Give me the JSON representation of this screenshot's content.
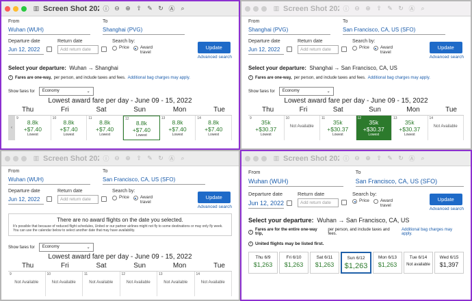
{
  "w1": {
    "title": "Screen Shot 2022-0...",
    "from_label": "From",
    "from": "Wuhan (WUH)",
    "to_label": "To",
    "to": "Shanghai (PVG)",
    "dep_label": "Departure date",
    "dep": "Jun 12, 2022",
    "ret_label": "Return date",
    "ret_ph": "Add return date",
    "search_label": "Search by:",
    "price": "Price",
    "award": "Award travel",
    "update": "Update",
    "advanced": "Advanced search",
    "select_label": "Select your departure:",
    "route": "Wuhan → Shanghai",
    "fares_bold": "Fares are one-way,",
    "fares_rest": "per person, and include taxes and fees.",
    "bag": "Additional bag charges may apply.",
    "show_fares": "Show fares for",
    "cabin": "Economy",
    "lowest": "Lowest award fare per day - June 09 - 15, 2022",
    "days": [
      "Thu",
      "Fri",
      "Sat",
      "Sun",
      "Mon",
      "Tue"
    ],
    "cells": [
      {
        "n": "9",
        "a": "8.8k",
        "b": "+$7.40",
        "c": "Lowest"
      },
      {
        "n": "10",
        "a": "8.8k",
        "b": "+$7.40",
        "c": "Lowest"
      },
      {
        "n": "11",
        "a": "8.8k",
        "b": "+$7.40",
        "c": "Lowest"
      },
      {
        "n": "12",
        "a": "8.8k",
        "b": "+$7.40",
        "c": "Lowest"
      },
      {
        "n": "13",
        "a": "8.8k",
        "b": "+$7.40",
        "c": "Lowest"
      },
      {
        "n": "14",
        "a": "8.8k",
        "b": "+$7.40",
        "c": "Lowest"
      }
    ]
  },
  "w2": {
    "title": "Screen Shot 2022-...",
    "from": "Shanghai (PVG)",
    "to": "San Francisco, CA, US (SFO)",
    "dep": "Jun 12, 2022",
    "ret_ph": "Add return date",
    "route": "Shanghai → San Francisco, CA, US",
    "lowest": "Lowest award fare per day - June 09 - 15, 2022",
    "days": [
      "Thu",
      "Fri",
      "Sat",
      "Sun",
      "Mon",
      "Tue"
    ],
    "cells": [
      {
        "n": "9",
        "a": "35k",
        "b": "+$30.37",
        "c": "Lowest"
      },
      {
        "n": "10",
        "na": "Not Available"
      },
      {
        "n": "11",
        "a": "35k",
        "b": "+$30.37",
        "c": "Lowest"
      },
      {
        "n": "12",
        "a": "35k",
        "b": "+$30.37",
        "c": "Lowest"
      },
      {
        "n": "13",
        "a": "35k",
        "b": "+$30.37",
        "c": "Lowest"
      },
      {
        "n": "14",
        "na": "Not Available"
      }
    ]
  },
  "w3": {
    "title": "Screen Shot 2022-...",
    "from": "Wuhan (WUH)",
    "to": "San Francisco, CA, US (SFO)",
    "dep": "Jun 12, 2022",
    "ret_ph": "Add return date",
    "no_head": "There are no award flights on the date you selected.",
    "no_text": "It's possible that because of reduced flight schedules, United or our partner airlines might not fly to some destinations or may only fly week. You can use the calendar below to select another date that may have availability.",
    "lowest": "Lowest award fare per day - June 09 - 15, 2022",
    "days": [
      "Thu",
      "Fri",
      "Sat",
      "Sun",
      "Mon",
      "Tue"
    ],
    "cells": [
      {
        "n": "9",
        "na": "Not Available"
      },
      {
        "n": "10",
        "na": "Not Available"
      },
      {
        "n": "11",
        "na": "Not Available"
      },
      {
        "n": "12",
        "na": "Not Available"
      },
      {
        "n": "13",
        "na": "Not Available"
      },
      {
        "n": "14",
        "na": "Not Available"
      }
    ]
  },
  "w4": {
    "title": "Screen Shot 2022-...",
    "from": "Wuhan (WUH)",
    "to": "San Francisco, CA, US (SFO)",
    "dep": "Jun 12, 2022",
    "ret_ph": "Add return date",
    "route": "Wuhan → San Francisco, CA, US",
    "fares_bold": "Fares are for the entire one-way trip,",
    "fares_rest": "per person, and include taxes and fees.",
    "note": "United flights may be listed first.",
    "days": [
      {
        "d": "Thu 6/9",
        "p": "$1,263"
      },
      {
        "d": "Fri 6/10",
        "p": "$1,263"
      },
      {
        "d": "Sat 6/11",
        "p": "$1,263"
      },
      {
        "d": "Sun 6/12",
        "p": "$1,263"
      },
      {
        "d": "Mon 6/13",
        "p": "$1,263"
      },
      {
        "d": "Tue 6/14",
        "p": "Not available"
      },
      {
        "d": "Wed 6/15",
        "p": "$1,397"
      }
    ]
  }
}
